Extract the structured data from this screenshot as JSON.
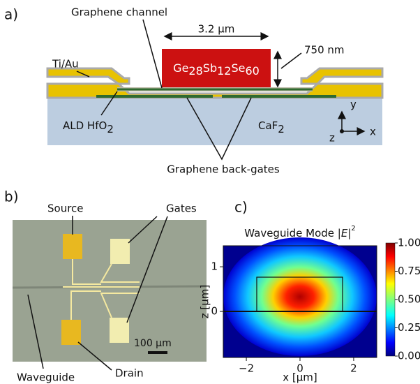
{
  "panel_a": {
    "label": "a)",
    "channel": "Graphene channel",
    "width": "3.2 µm",
    "height": "750 nm",
    "material": [
      "Ge",
      "28",
      "Sb",
      "12",
      "Se",
      "60"
    ],
    "metal": "Ti/Au",
    "oxide": [
      "ALD HfO",
      "2"
    ],
    "substrate": [
      "CaF",
      "2"
    ],
    "gates": "Graphene back-gates",
    "axes": {
      "y": "y",
      "x": "x",
      "z": "z"
    }
  },
  "panel_b": {
    "label": "b)",
    "source": "Source",
    "gates": "Gates",
    "scale": "100 µm",
    "waveguide": "Waveguide",
    "drain": "Drain"
  },
  "panel_c": {
    "label": "c)",
    "title": [
      "Waveguide Mode |",
      "E",
      "|",
      "2"
    ],
    "xlabel": "x [µm]",
    "ylabel": "z [µm]",
    "xlim": [
      -2.86,
      2.86
    ],
    "ylim": [
      -1.03,
      1.47
    ],
    "xticks": [
      {
        "value": -2,
        "label": "−2"
      },
      0,
      2
    ],
    "yticks": [
      0,
      1
    ],
    "clim": [
      0,
      1
    ],
    "cticks": [
      {
        "value": 0,
        "label": "0.00"
      },
      {
        "value": 0.25,
        "label": "0.25"
      },
      {
        "value": 0.5,
        "label": "0.50"
      },
      {
        "value": 0.75,
        "label": "0.75"
      },
      {
        "value": 1,
        "label": "1.00"
      }
    ]
  }
}
